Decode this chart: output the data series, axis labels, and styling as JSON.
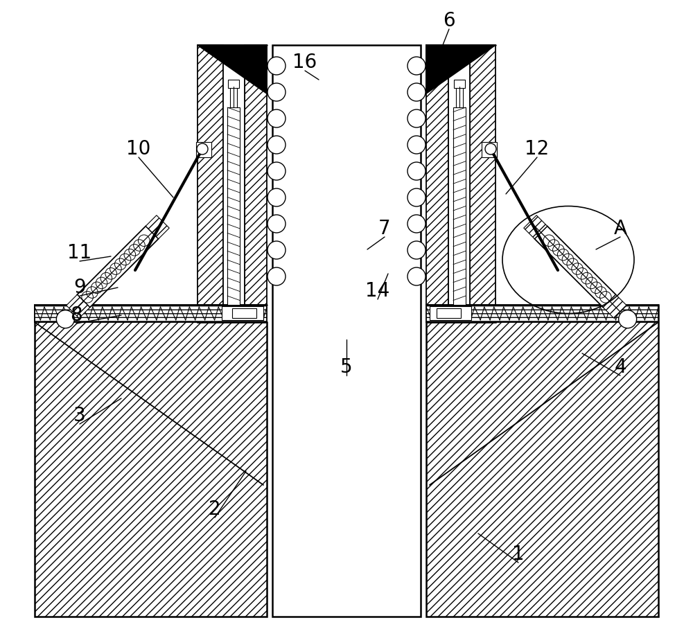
{
  "bg_color": "#ffffff",
  "line_color": "#000000",
  "label_fontsize": 20,
  "fig_width": 10.0,
  "fig_height": 9.18,
  "labels": [
    [
      "1",
      748,
      800,
      690,
      770
    ],
    [
      "2",
      310,
      735,
      355,
      680
    ],
    [
      "3",
      115,
      600,
      175,
      575
    ],
    [
      "4",
      895,
      530,
      840,
      510
    ],
    [
      "5",
      500,
      530,
      500,
      490
    ],
    [
      "6",
      648,
      30,
      635,
      75
    ],
    [
      "7",
      555,
      330,
      530,
      360
    ],
    [
      "8",
      110,
      455,
      175,
      455
    ],
    [
      "9",
      115,
      415,
      170,
      415
    ],
    [
      "10",
      200,
      215,
      250,
      285
    ],
    [
      "11",
      115,
      365,
      160,
      370
    ],
    [
      "12",
      775,
      215,
      730,
      280
    ],
    [
      "14",
      545,
      420,
      560,
      395
    ],
    [
      "16",
      440,
      90,
      460,
      115
    ],
    [
      "A",
      895,
      330,
      860,
      360
    ]
  ]
}
